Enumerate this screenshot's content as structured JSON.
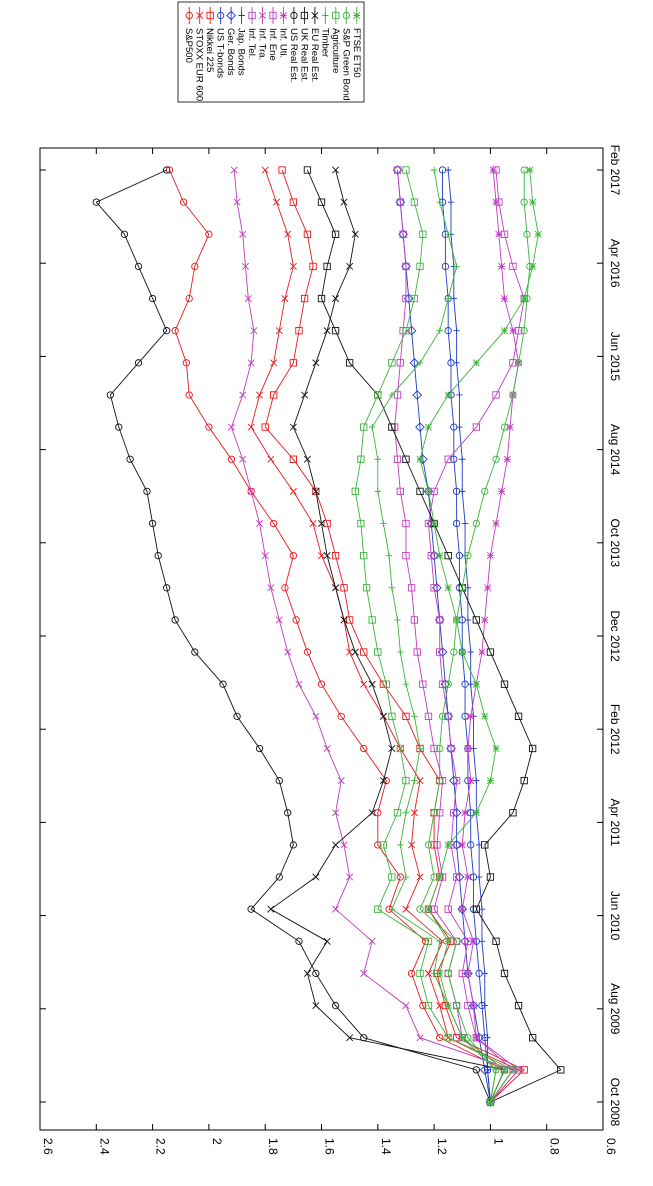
{
  "chart_data": {
    "type": "line",
    "title": "",
    "xlabel": "",
    "ylabel": "",
    "x_ticks": [
      "Oct 2008",
      "Aug 2009",
      "Jun 2010",
      "Apr 2011",
      "Feb 2012",
      "Dec 2012",
      "Oct 2013",
      "Aug 2014",
      "Jun 2015",
      "Apr 2016",
      "Feb 2017"
    ],
    "y_ticks": [
      "0.6",
      "0.8",
      "1",
      "1.2",
      "1.4",
      "1.6",
      "1.8",
      "2",
      "2.2",
      "2.4",
      "2.6"
    ],
    "ylim": [
      0.6,
      2.6
    ],
    "orientation": "rotated 90 degrees clockwise",
    "grid": false,
    "legend_position": "top",
    "series": [
      {
        "name": "S&P500",
        "color": "#e8191c",
        "marker": "circle",
        "values": [
          1.0,
          0.95,
          1.18,
          1.24,
          1.28,
          1.23,
          1.36,
          1.32,
          1.4,
          1.4,
          1.37,
          1.45,
          1.53,
          1.6,
          1.65,
          1.69,
          1.73,
          1.7,
          1.77,
          1.85,
          1.92,
          2.0,
          2.07,
          2.08,
          2.12,
          2.07,
          2.05,
          2.0,
          2.09,
          2.14
        ]
      },
      {
        "name": "STOXX EUR 600",
        "color": "#e8191c",
        "marker": "x",
        "values": [
          1.0,
          0.9,
          1.15,
          1.18,
          1.22,
          1.17,
          1.3,
          1.25,
          1.28,
          1.27,
          1.25,
          1.32,
          1.38,
          1.45,
          1.5,
          1.52,
          1.55,
          1.6,
          1.63,
          1.7,
          1.78,
          1.85,
          1.82,
          1.77,
          1.75,
          1.73,
          1.7,
          1.72,
          1.76,
          1.8
        ]
      },
      {
        "name": "Nikkei 225",
        "color": "#e8191c",
        "marker": "square",
        "values": [
          1.0,
          0.88,
          1.12,
          1.16,
          1.19,
          1.14,
          1.22,
          1.18,
          1.2,
          1.2,
          1.18,
          1.25,
          1.3,
          1.38,
          1.45,
          1.5,
          1.52,
          1.55,
          1.58,
          1.62,
          1.7,
          1.8,
          1.77,
          1.7,
          1.68,
          1.66,
          1.63,
          1.65,
          1.7,
          1.74
        ]
      },
      {
        "name": "US T-bonds",
        "color": "#1f3cc8",
        "marker": "circle",
        "values": [
          1.0,
          1.01,
          1.02,
          1.03,
          1.04,
          1.05,
          1.06,
          1.06,
          1.07,
          1.07,
          1.08,
          1.08,
          1.09,
          1.09,
          1.1,
          1.1,
          1.11,
          1.11,
          1.12,
          1.12,
          1.13,
          1.13,
          1.14,
          1.14,
          1.15,
          1.15,
          1.16,
          1.16,
          1.17,
          1.17
        ]
      },
      {
        "name": "Ger. Bonds",
        "color": "#1f3cc8",
        "marker": "diamond",
        "values": [
          1.0,
          1.02,
          1.04,
          1.06,
          1.08,
          1.09,
          1.1,
          1.11,
          1.12,
          1.12,
          1.13,
          1.14,
          1.15,
          1.16,
          1.17,
          1.18,
          1.19,
          1.2,
          1.21,
          1.22,
          1.24,
          1.25,
          1.26,
          1.27,
          1.28,
          1.29,
          1.3,
          1.31,
          1.32,
          1.33
        ]
      },
      {
        "name": "Jap. Bonds",
        "color": "#1f3cc8",
        "marker": "plus",
        "values": [
          1.0,
          1.01,
          1.01,
          1.02,
          1.02,
          1.03,
          1.03,
          1.04,
          1.04,
          1.05,
          1.05,
          1.06,
          1.06,
          1.07,
          1.07,
          1.08,
          1.08,
          1.09,
          1.09,
          1.1,
          1.1,
          1.11,
          1.11,
          1.12,
          1.12,
          1.13,
          1.13,
          1.14,
          1.14,
          1.15
        ]
      },
      {
        "name": "Inf. Tel.",
        "color": "#c03cc0",
        "marker": "square",
        "values": [
          1.0,
          0.95,
          1.1,
          1.12,
          1.15,
          1.12,
          1.2,
          1.17,
          1.19,
          1.18,
          1.17,
          1.2,
          1.22,
          1.24,
          1.26,
          1.27,
          1.28,
          1.3,
          1.3,
          1.32,
          1.33,
          1.34,
          1.33,
          1.32,
          1.31,
          1.3,
          1.3,
          1.31,
          1.32,
          1.33
        ]
      },
      {
        "name": "Inf. Tra.",
        "color": "#c03cc0",
        "marker": "x",
        "values": [
          1.0,
          0.92,
          1.25,
          1.3,
          1.45,
          1.42,
          1.55,
          1.5,
          1.52,
          1.55,
          1.53,
          1.58,
          1.62,
          1.68,
          1.72,
          1.75,
          1.78,
          1.8,
          1.82,
          1.85,
          1.88,
          1.92,
          1.88,
          1.85,
          1.84,
          1.86,
          1.87,
          1.88,
          1.9,
          1.91
        ]
      },
      {
        "name": "Inf. Ene",
        "color": "#c03cc0",
        "marker": "square",
        "values": [
          1.0,
          0.9,
          1.05,
          1.08,
          1.1,
          1.08,
          1.15,
          1.12,
          1.14,
          1.13,
          1.12,
          1.14,
          1.15,
          1.17,
          1.18,
          1.18,
          1.2,
          1.21,
          1.22,
          1.2,
          1.15,
          1.05,
          0.98,
          0.92,
          0.9,
          0.88,
          0.92,
          0.95,
          0.97,
          0.98
        ]
      },
      {
        "name": "Inf. Uti.",
        "color": "#c03cc0",
        "marker": "star",
        "values": [
          1.0,
          0.92,
          1.05,
          1.06,
          1.08,
          1.06,
          1.1,
          1.08,
          1.1,
          1.09,
          1.07,
          1.08,
          1.07,
          1.05,
          1.03,
          1.02,
          1.01,
          1.0,
          0.98,
          0.96,
          0.94,
          0.93,
          0.92,
          0.9,
          0.92,
          0.95,
          0.96,
          0.97,
          0.98,
          0.99
        ]
      },
      {
        "name": "US Real Est.",
        "color": "#111111",
        "marker": "circle",
        "values": [
          1.0,
          1.05,
          1.45,
          1.55,
          1.62,
          1.68,
          1.85,
          1.75,
          1.7,
          1.72,
          1.75,
          1.82,
          1.9,
          1.95,
          2.05,
          2.12,
          2.15,
          2.18,
          2.2,
          2.22,
          2.28,
          2.32,
          2.35,
          2.25,
          2.15,
          2.2,
          2.25,
          2.3,
          2.4,
          2.15
        ]
      },
      {
        "name": "UK Real Est.",
        "color": "#111111",
        "marker": "square",
        "values": [
          1.0,
          0.75,
          0.85,
          0.9,
          0.95,
          0.98,
          1.05,
          1.0,
          1.02,
          0.92,
          0.88,
          0.85,
          0.9,
          0.95,
          1.0,
          1.05,
          1.1,
          1.15,
          1.2,
          1.25,
          1.3,
          1.35,
          1.4,
          1.5,
          1.55,
          1.6,
          1.58,
          1.55,
          1.6,
          1.65
        ]
      },
      {
        "name": "EU Real Est.",
        "color": "#111111",
        "marker": "x",
        "values": [
          1.0,
          0.95,
          1.5,
          1.62,
          1.65,
          1.58,
          1.78,
          1.62,
          1.55,
          1.42,
          1.38,
          1.35,
          1.38,
          1.42,
          1.48,
          1.52,
          1.55,
          1.58,
          1.6,
          1.62,
          1.65,
          1.7,
          1.66,
          1.62,
          1.58,
          1.55,
          1.5,
          1.48,
          1.52,
          1.55
        ]
      },
      {
        "name": "Timber",
        "color": "#3cb43c",
        "marker": "plus",
        "values": [
          1.0,
          0.98,
          1.1,
          1.15,
          1.2,
          1.18,
          1.35,
          1.3,
          1.32,
          1.3,
          1.27,
          1.25,
          1.27,
          1.3,
          1.32,
          1.33,
          1.35,
          1.36,
          1.38,
          1.4,
          1.4,
          1.42,
          1.35,
          1.25,
          1.18,
          1.15,
          1.12,
          1.15,
          1.18,
          1.2
        ]
      },
      {
        "name": "Agriculture",
        "color": "#3cb43c",
        "marker": "square",
        "values": [
          1.0,
          0.92,
          1.15,
          1.22,
          1.25,
          1.22,
          1.4,
          1.35,
          1.38,
          1.33,
          1.3,
          1.32,
          1.35,
          1.37,
          1.4,
          1.42,
          1.44,
          1.45,
          1.46,
          1.48,
          1.46,
          1.45,
          1.4,
          1.35,
          1.3,
          1.27,
          1.25,
          1.24,
          1.27,
          1.3
        ]
      },
      {
        "name": "S&P Green Bond",
        "color": "#3cb43c",
        "marker": "circle",
        "values": [
          1.0,
          0.98,
          1.08,
          1.12,
          1.15,
          1.12,
          1.25,
          1.2,
          1.22,
          1.2,
          1.18,
          1.18,
          1.17,
          1.15,
          1.13,
          1.12,
          1.1,
          1.08,
          1.05,
          1.02,
          0.98,
          0.95,
          0.92,
          0.9,
          0.88,
          0.87,
          0.86,
          0.87,
          0.88,
          0.88
        ]
      },
      {
        "name": "FTSE ET50",
        "color": "#3cb43c",
        "marker": "star",
        "values": [
          1.0,
          0.95,
          1.1,
          1.15,
          1.18,
          1.15,
          1.22,
          1.18,
          1.15,
          1.05,
          1.0,
          0.98,
          1.02,
          1.05,
          1.1,
          1.12,
          1.15,
          1.18,
          1.2,
          1.22,
          1.25,
          1.22,
          1.15,
          1.05,
          0.95,
          0.88,
          0.85,
          0.83,
          0.85,
          0.86
        ]
      }
    ]
  }
}
